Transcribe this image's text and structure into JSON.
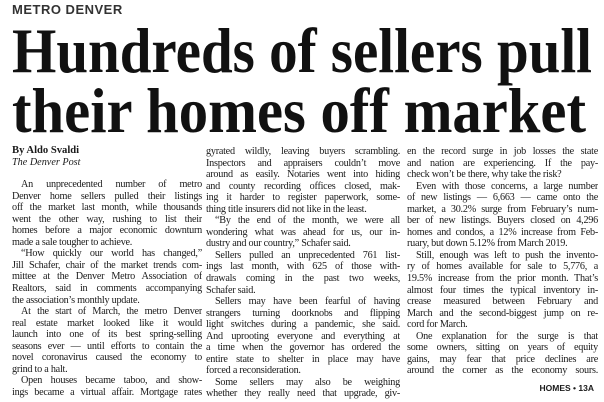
{
  "kicker": "METRO DENVER",
  "headline": {
    "line1": "Hundreds of sellers pull",
    "line2": "their homes off market"
  },
  "byline": "By Aldo Svaldi",
  "source": "The Denver Post",
  "columns": [
    [
      {
        "indent": true,
        "lines": [
          "An unprecedented number of metro",
          "Denver home sellers pulled their listings",
          "off the market last month, while thousands",
          "went the other way, rushing to list their",
          "homes before a major economic downturn",
          "made a sale tougher to achieve."
        ]
      },
      {
        "indent": true,
        "lines": [
          "“How quickly our world has changed,”",
          "Jill Schafer, chair of the market trends com-",
          "mittee at the Denver Metro Association of",
          "Realtors, said in comments accompanying",
          "the association’s monthly update."
        ]
      },
      {
        "indent": true,
        "lines": [
          "At the start of March, the metro Denver",
          "real estate market looked like it would",
          "launch into one of its best spring-selling",
          "seasons ever — until efforts to contain the",
          "novel coronavirus caused the economy to",
          "grind to a halt."
        ]
      },
      {
        "indent": true,
        "lines": [
          "Open houses became taboo, and show-",
          "ings became a virtual affair. Mortgage rates"
        ],
        "continues": true
      }
    ],
    [
      {
        "indent": false,
        "lines": [
          "gyrated wildly, leaving buyers scrambling.",
          "Inspectors and appraisers couldn’t move",
          "around as easily. Notaries went into hiding",
          "and county recording offices closed, mak-",
          "ing it harder to register paperwork, some-",
          "thing title insurers did not like in the least."
        ]
      },
      {
        "indent": true,
        "lines": [
          "“By the end of the month, we were all",
          "wondering what was ahead for us, our in-",
          "dustry and our country,” Schafer said."
        ]
      },
      {
        "indent": true,
        "lines": [
          "Sellers pulled an unprecedented 761 list-",
          "ings last month, with 625 of those with-",
          "drawals coming in the past two weeks,",
          "Schafer said."
        ]
      },
      {
        "indent": true,
        "lines": [
          "Sellers may have been fearful of having",
          "strangers turning doorknobs and flipping",
          "light switches during a pandemic, she said.",
          "And uprooting everyone and everything at",
          "a time when the governor has ordered the",
          "entire state to shelter in place may have",
          "forced a reconsideration."
        ]
      },
      {
        "indent": true,
        "lines": [
          "Some sellers may also be weighing",
          "whether they really need that upgrade, giv-"
        ],
        "continues": true
      }
    ],
    [
      {
        "indent": false,
        "lines": [
          "en the record surge in job losses the state",
          "and nation are experiencing. If the pay-",
          "check won’t be there, why take the risk?"
        ]
      },
      {
        "indent": true,
        "lines": [
          "Even with those concerns, a large number",
          "of new listings — 6,663 — came onto the",
          "market, a 30.2% surge from February’s num-",
          "ber of new listings. Buyers closed on 4,296",
          "homes and condos, a 12% increase from Feb-",
          "ruary, but down 5.12% from March 2019."
        ]
      },
      {
        "indent": true,
        "lines": [
          "Still, enough was left to push the invento-",
          "ry of homes available for sale to 5,776, a",
          "19.5% increase from the prior month. That’s",
          "almost four times the typical inventory in-",
          "crease measured between February and",
          "March and the second-biggest jump on re-",
          "cord for March."
        ]
      },
      {
        "indent": true,
        "lines": [
          "One explanation for the surge is that",
          "some owners, sitting on years of equity",
          "gains, may fear that price declines are",
          "around the corner as the economy sours."
        ],
        "continues": true
      }
    ]
  ],
  "jump": "HOMES • 13A"
}
